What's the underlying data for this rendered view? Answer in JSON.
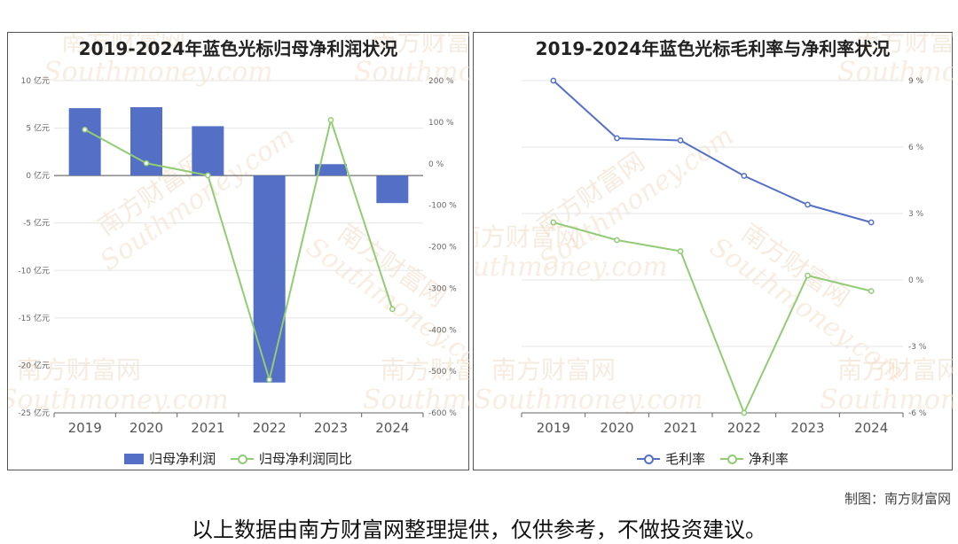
{
  "watermark": {
    "cn": "南方财富网",
    "en": "Southmoney.com"
  },
  "credit": "制图：南方财富网",
  "disclaimer": "以上数据由南方财富网整理提供，仅供参考，不做投资建议。",
  "chart_data": [
    {
      "type": "bar",
      "title": "2019-2024年蓝色光标归母净利润状况",
      "categories": [
        "2019",
        "2020",
        "2021",
        "2022",
        "2023",
        "2024"
      ],
      "series": [
        {
          "name": "归母净利润",
          "type": "bar",
          "axis": "left",
          "color": "#5470c6",
          "values": [
            7.1,
            7.2,
            5.2,
            -21.8,
            1.2,
            -2.9
          ]
        },
        {
          "name": "归母净利润同比",
          "type": "line",
          "axis": "right",
          "color": "#91cc75",
          "values": [
            82,
            1,
            -28,
            -520,
            105,
            -350
          ]
        }
      ],
      "y_left": {
        "min": -25,
        "max": 10,
        "step": 5,
        "tick_labels": [
          "10 亿元",
          "5 亿元",
          "0 亿元",
          "-5 亿元",
          "-10 亿元",
          "-15 亿元",
          "-20 亿元",
          "-25 亿元"
        ]
      },
      "y_right": {
        "min": -600,
        "max": 200,
        "step": 100,
        "tick_labels": [
          "200 %",
          "100 %",
          "0 %",
          "-100 %",
          "-200 %",
          "-300 %",
          "-400 %",
          "-500 %",
          "-600 %"
        ]
      },
      "grid": true,
      "legend": "bottom"
    },
    {
      "type": "line",
      "title": "2019-2024年蓝色光标毛利率与净利率状况",
      "categories": [
        "2019",
        "2020",
        "2021",
        "2022",
        "2023",
        "2024"
      ],
      "series": [
        {
          "name": "毛利率",
          "color": "#5470c6",
          "values": [
            9.0,
            6.4,
            6.3,
            4.7,
            3.4,
            2.6
          ]
        },
        {
          "name": "净利率",
          "color": "#91cc75",
          "values": [
            2.6,
            1.8,
            1.3,
            -6.0,
            0.2,
            -0.5
          ]
        }
      ],
      "y_right": {
        "min": -6,
        "max": 9,
        "step": 3,
        "tick_labels": [
          "9 %",
          "6 %",
          "3 %",
          "0 %",
          "-3 %",
          "-6 %"
        ]
      },
      "grid": true,
      "legend": "bottom"
    }
  ]
}
